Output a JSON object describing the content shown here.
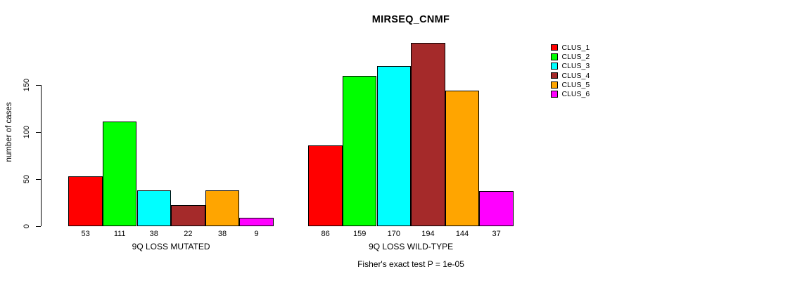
{
  "chart_data": {
    "type": "bar",
    "title": "MIRSEQ_CNMF",
    "ylabel": "number of cases",
    "yticks": [
      0,
      50,
      100,
      150
    ],
    "ylim": [
      0,
      205
    ],
    "grid": false,
    "legend_position": "right",
    "series": [
      {
        "name": "CLUS_1",
        "color": "#FF0000"
      },
      {
        "name": "CLUS_2",
        "color": "#00FF00"
      },
      {
        "name": "CLUS_3",
        "color": "#00FFFF"
      },
      {
        "name": "CLUS_4",
        "color": "#A52A2A"
      },
      {
        "name": "CLUS_5",
        "color": "#FFA500"
      },
      {
        "name": "CLUS_6",
        "color": "#FF00FF"
      }
    ],
    "groups": [
      {
        "label": "9Q LOSS MUTATED",
        "values": [
          53,
          111,
          38,
          22,
          38,
          9
        ]
      },
      {
        "label": "9Q LOSS WILD-TYPE",
        "values": [
          86,
          159,
          170,
          194,
          144,
          37
        ]
      }
    ],
    "footnote": "Fisher's exact test P = 1e-05",
    "axis_color": "#000000",
    "bar_border_color": "#000000"
  }
}
